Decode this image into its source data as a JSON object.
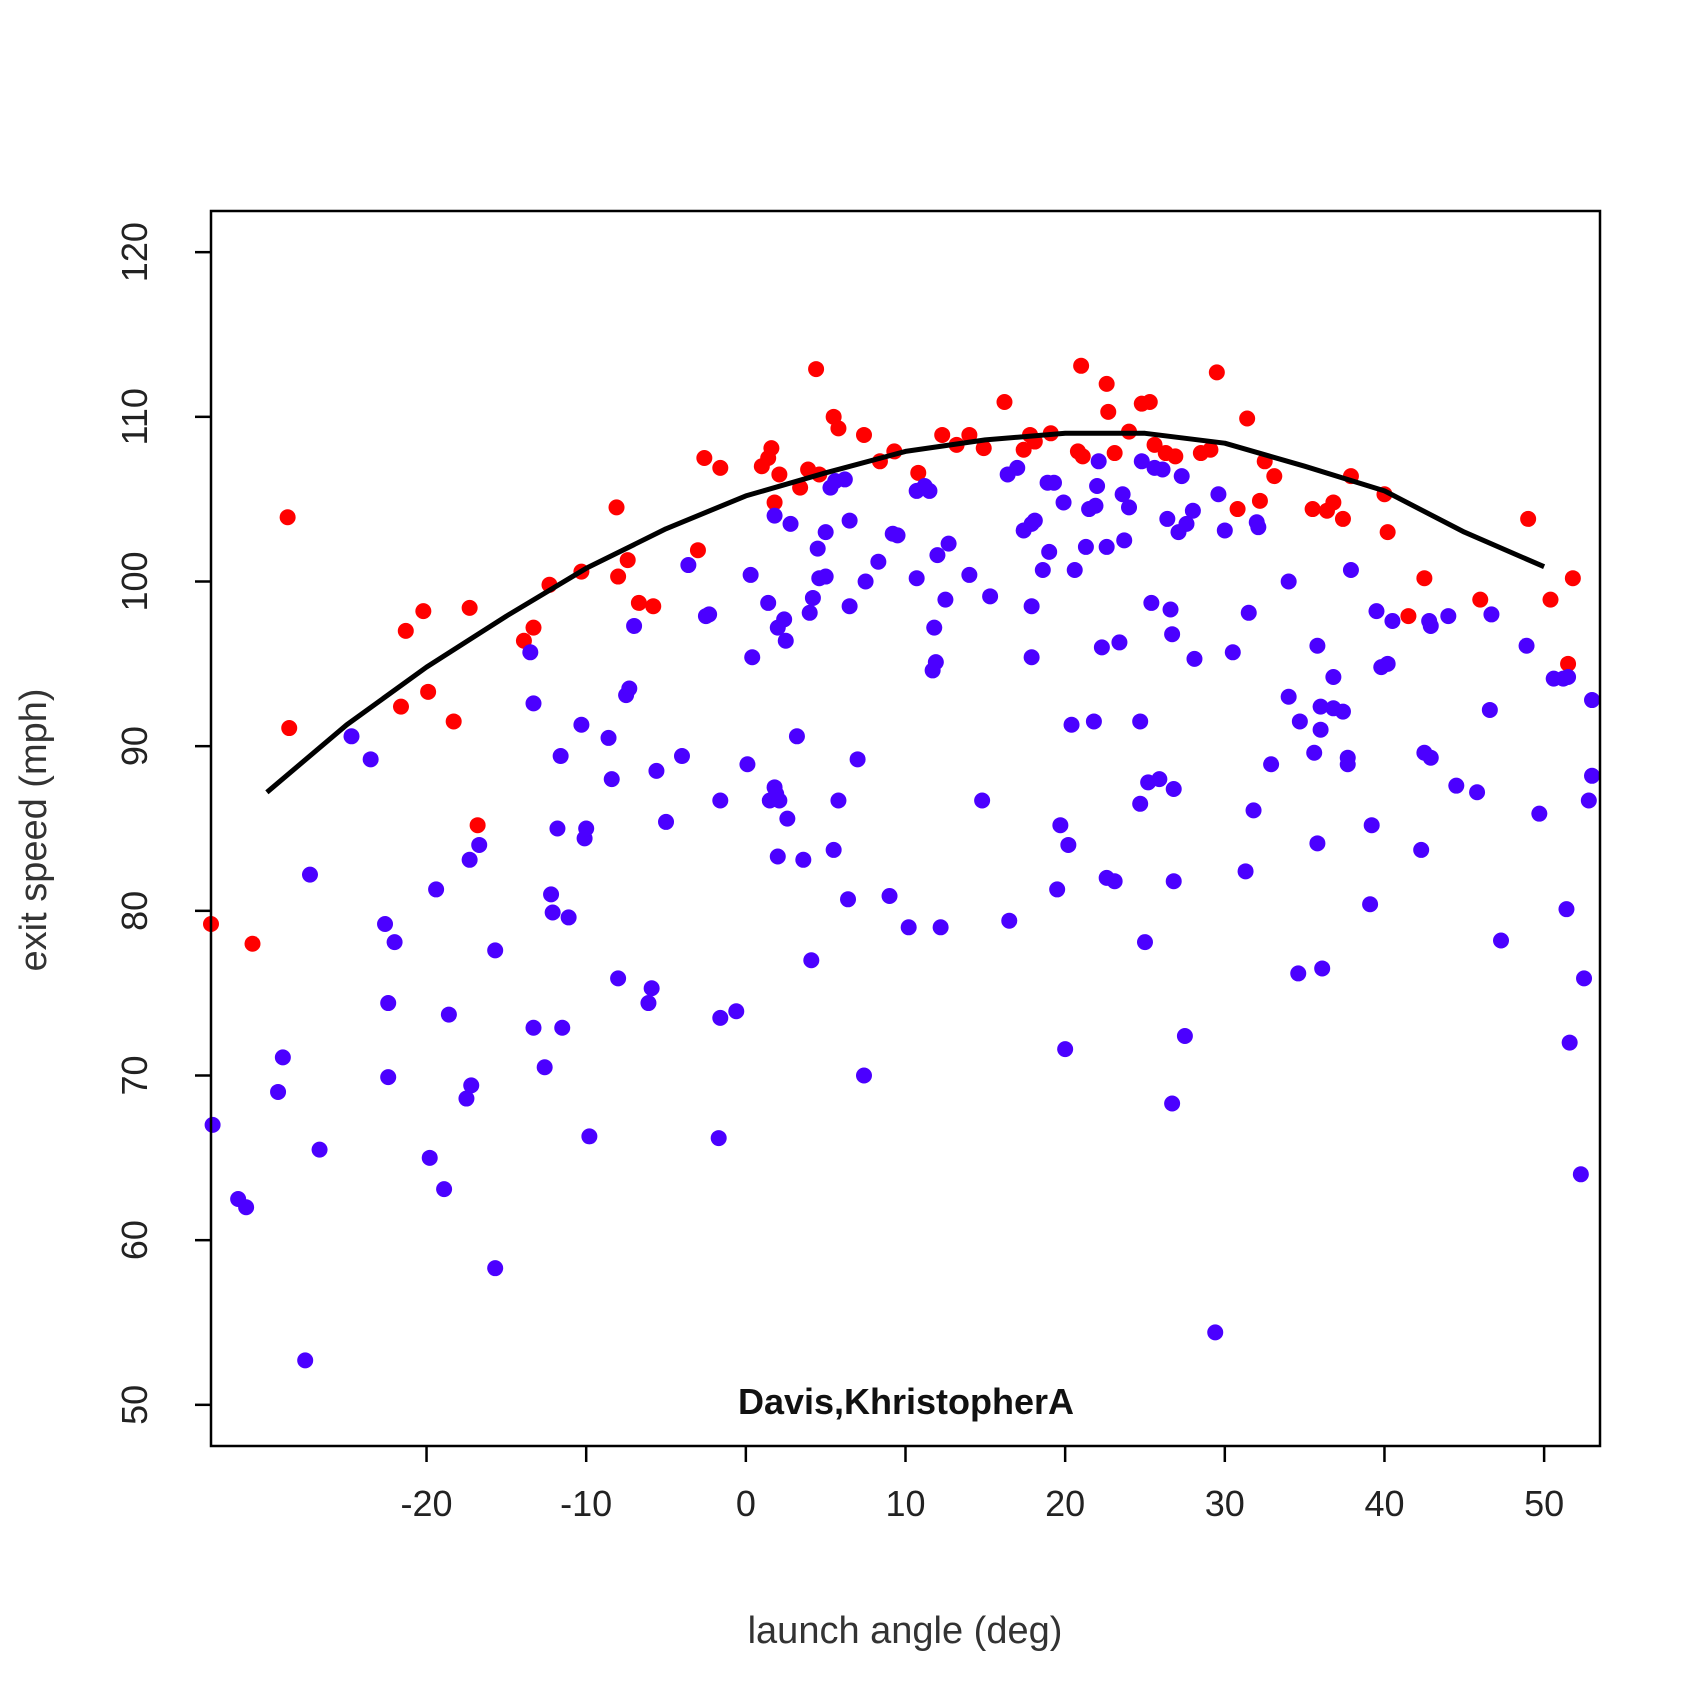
{
  "chart_data": {
    "type": "scatter",
    "title": "",
    "xlabel": "launch angle (deg)",
    "ylabel": "exit speed (mph)",
    "annotation": "Davis,KhristopherA",
    "xlim": [
      -33.5,
      53.5
    ],
    "ylim": [
      47.5,
      122.5
    ],
    "x_ticks": [
      -20,
      -10,
      0,
      10,
      20,
      30,
      40,
      50
    ],
    "y_ticks": [
      50,
      60,
      70,
      80,
      90,
      100,
      110,
      120
    ],
    "grid": false,
    "legend": "none",
    "colors": {
      "red_series": "#ff0000",
      "blue_series": "#4b00ff",
      "fit_line": "#000000"
    },
    "series": [
      {
        "color": "#ff0000",
        "points": [
          [
            -33.5,
            79.2
          ],
          [
            -30.9,
            78.0
          ],
          [
            -28.7,
            103.9
          ],
          [
            -28.6,
            91.1
          ],
          [
            -21.6,
            92.4
          ],
          [
            -21.3,
            97.0
          ],
          [
            -20.2,
            98.2
          ],
          [
            -19.9,
            93.3
          ],
          [
            -18.3,
            91.5
          ],
          [
            -17.3,
            98.4
          ],
          [
            -16.8,
            85.2
          ],
          [
            -13.9,
            96.4
          ],
          [
            -13.3,
            97.2
          ],
          [
            -12.3,
            99.8
          ],
          [
            -10.3,
            100.6
          ],
          [
            -8.1,
            104.5
          ],
          [
            -8.0,
            100.3
          ],
          [
            -7.4,
            101.3
          ],
          [
            -6.7,
            98.7
          ],
          [
            -5.8,
            98.5
          ],
          [
            -3.0,
            101.9
          ],
          [
            -2.6,
            107.5
          ],
          [
            -1.6,
            106.9
          ],
          [
            1.0,
            107.0
          ],
          [
            1.4,
            107.5
          ],
          [
            1.6,
            108.1
          ],
          [
            1.8,
            104.8
          ],
          [
            2.1,
            106.5
          ],
          [
            3.4,
            105.7
          ],
          [
            3.9,
            106.8
          ],
          [
            4.4,
            112.9
          ],
          [
            4.6,
            106.5
          ],
          [
            5.5,
            110.0
          ],
          [
            5.8,
            109.3
          ],
          [
            7.4,
            108.9
          ],
          [
            8.4,
            107.3
          ],
          [
            9.3,
            107.9
          ],
          [
            10.8,
            106.6
          ],
          [
            12.3,
            108.9
          ],
          [
            13.2,
            108.3
          ],
          [
            14.0,
            108.9
          ],
          [
            14.9,
            108.1
          ],
          [
            16.2,
            110.9
          ],
          [
            17.4,
            108.0
          ],
          [
            17.8,
            108.9
          ],
          [
            18.1,
            108.5
          ],
          [
            19.1,
            109.0
          ],
          [
            20.8,
            107.9
          ],
          [
            21.0,
            113.1
          ],
          [
            21.1,
            107.6
          ],
          [
            22.6,
            112.0
          ],
          [
            22.7,
            110.3
          ],
          [
            23.1,
            107.8
          ],
          [
            24.0,
            109.1
          ],
          [
            24.8,
            110.8
          ],
          [
            25.3,
            110.9
          ],
          [
            25.6,
            108.3
          ],
          [
            26.3,
            107.8
          ],
          [
            26.9,
            107.6
          ],
          [
            28.5,
            107.8
          ],
          [
            29.1,
            108.0
          ],
          [
            29.5,
            112.7
          ],
          [
            30.8,
            104.4
          ],
          [
            31.4,
            109.9
          ],
          [
            32.2,
            104.9
          ],
          [
            32.5,
            107.3
          ],
          [
            33.1,
            106.4
          ],
          [
            35.5,
            104.4
          ],
          [
            36.4,
            104.3
          ],
          [
            36.8,
            104.8
          ],
          [
            37.4,
            103.8
          ],
          [
            37.9,
            106.4
          ],
          [
            40.0,
            105.3
          ],
          [
            40.2,
            103.0
          ],
          [
            41.5,
            97.9
          ],
          [
            42.5,
            100.2
          ],
          [
            46.0,
            98.9
          ],
          [
            49.0,
            103.8
          ],
          [
            50.4,
            98.9
          ],
          [
            51.5,
            95.0
          ],
          [
            51.8,
            100.2
          ]
        ]
      },
      {
        "color": "#4b00ff",
        "points": [
          [
            -33.4,
            67.0
          ],
          [
            -31.8,
            62.5
          ],
          [
            -31.3,
            62.0
          ],
          [
            -29.3,
            69.0
          ],
          [
            -29.0,
            71.1
          ],
          [
            -27.6,
            52.7
          ],
          [
            -27.3,
            82.2
          ],
          [
            -26.7,
            65.5
          ],
          [
            -24.7,
            90.6
          ],
          [
            -23.5,
            89.2
          ],
          [
            -22.6,
            79.2
          ],
          [
            -22.4,
            69.9
          ],
          [
            -22.4,
            74.4
          ],
          [
            -22.0,
            78.1
          ],
          [
            -19.8,
            65.0
          ],
          [
            -19.4,
            81.3
          ],
          [
            -18.9,
            63.1
          ],
          [
            -18.6,
            73.7
          ],
          [
            -17.5,
            68.6
          ],
          [
            -17.2,
            69.4
          ],
          [
            -17.3,
            83.1
          ],
          [
            -16.7,
            84.0
          ],
          [
            -15.7,
            58.3
          ],
          [
            -15.7,
            77.6
          ],
          [
            -13.5,
            95.7
          ],
          [
            -13.3,
            92.6
          ],
          [
            -13.3,
            72.9
          ],
          [
            -12.6,
            70.5
          ],
          [
            -12.2,
            81.0
          ],
          [
            -12.1,
            79.9
          ],
          [
            -11.8,
            85.0
          ],
          [
            -11.6,
            89.4
          ],
          [
            -11.5,
            72.9
          ],
          [
            -11.1,
            79.6
          ],
          [
            -10.3,
            91.3
          ],
          [
            -10.1,
            84.4
          ],
          [
            -10.0,
            85.0
          ],
          [
            -9.8,
            66.3
          ],
          [
            -8.6,
            90.5
          ],
          [
            -8.4,
            88.0
          ],
          [
            -8.0,
            75.9
          ],
          [
            -7.5,
            93.1
          ],
          [
            -7.3,
            93.5
          ],
          [
            -7.0,
            97.3
          ],
          [
            -6.1,
            74.4
          ],
          [
            -5.9,
            75.3
          ],
          [
            -5.6,
            88.5
          ],
          [
            -5.0,
            85.4
          ],
          [
            -4.0,
            89.4
          ],
          [
            -3.6,
            101.0
          ],
          [
            -2.5,
            97.9
          ],
          [
            -2.3,
            98.0
          ],
          [
            -1.7,
            66.2
          ],
          [
            -1.6,
            86.7
          ],
          [
            -1.6,
            73.5
          ],
          [
            -0.6,
            73.9
          ],
          [
            0.1,
            88.9
          ],
          [
            0.3,
            100.4
          ],
          [
            0.4,
            95.4
          ],
          [
            1.4,
            98.7
          ],
          [
            1.5,
            86.7
          ],
          [
            1.8,
            87.5
          ],
          [
            1.8,
            104.0
          ],
          [
            1.9,
            87.1
          ],
          [
            2.1,
            86.7
          ],
          [
            2.0,
            97.2
          ],
          [
            2.0,
            83.3
          ],
          [
            2.4,
            97.7
          ],
          [
            2.5,
            96.4
          ],
          [
            2.6,
            85.6
          ],
          [
            2.8,
            103.5
          ],
          [
            3.2,
            90.6
          ],
          [
            3.6,
            83.1
          ],
          [
            4.1,
            77.0
          ],
          [
            4.0,
            98.1
          ],
          [
            4.2,
            99.0
          ],
          [
            4.5,
            102.0
          ],
          [
            4.6,
            100.2
          ],
          [
            5.0,
            103.0
          ],
          [
            5.0,
            100.3
          ],
          [
            5.3,
            105.7
          ],
          [
            5.5,
            83.7
          ],
          [
            5.6,
            106.1
          ],
          [
            5.8,
            86.7
          ],
          [
            6.2,
            106.2
          ],
          [
            6.4,
            80.7
          ],
          [
            6.5,
            98.5
          ],
          [
            6.5,
            103.7
          ],
          [
            7.0,
            89.2
          ],
          [
            7.4,
            70.0
          ],
          [
            7.5,
            100.0
          ],
          [
            8.3,
            101.2
          ],
          [
            9.0,
            80.9
          ],
          [
            9.2,
            102.9
          ],
          [
            9.5,
            102.8
          ],
          [
            10.2,
            79.0
          ],
          [
            10.7,
            100.2
          ],
          [
            10.7,
            105.5
          ],
          [
            11.2,
            105.8
          ],
          [
            11.5,
            105.5
          ],
          [
            11.7,
            94.6
          ],
          [
            11.8,
            97.2
          ],
          [
            11.9,
            95.1
          ],
          [
            12.0,
            101.6
          ],
          [
            12.2,
            79.0
          ],
          [
            12.5,
            98.9
          ],
          [
            12.7,
            102.3
          ],
          [
            14.0,
            100.4
          ],
          [
            14.8,
            86.7
          ],
          [
            15.3,
            99.1
          ],
          [
            16.4,
            106.5
          ],
          [
            16.5,
            79.4
          ],
          [
            17.0,
            106.9
          ],
          [
            17.4,
            103.1
          ],
          [
            17.9,
            103.5
          ],
          [
            17.9,
            98.5
          ],
          [
            17.9,
            95.4
          ],
          [
            18.1,
            103.7
          ],
          [
            18.6,
            100.7
          ],
          [
            18.9,
            106.0
          ],
          [
            19.0,
            101.8
          ],
          [
            19.3,
            106.0
          ],
          [
            19.5,
            81.3
          ],
          [
            19.7,
            85.2
          ],
          [
            19.9,
            104.8
          ],
          [
            20.0,
            71.6
          ],
          [
            20.2,
            84.0
          ],
          [
            20.4,
            91.3
          ],
          [
            20.6,
            100.7
          ],
          [
            21.3,
            102.1
          ],
          [
            21.5,
            104.4
          ],
          [
            21.8,
            91.5
          ],
          [
            21.9,
            104.6
          ],
          [
            22.0,
            105.8
          ],
          [
            22.1,
            107.3
          ],
          [
            22.3,
            96.0
          ],
          [
            22.6,
            82.0
          ],
          [
            22.6,
            102.1
          ],
          [
            23.1,
            81.8
          ],
          [
            23.4,
            96.3
          ],
          [
            23.6,
            105.3
          ],
          [
            23.7,
            102.5
          ],
          [
            24.0,
            104.5
          ],
          [
            24.7,
            91.5
          ],
          [
            24.7,
            86.5
          ],
          [
            24.8,
            107.3
          ],
          [
            25.0,
            78.1
          ],
          [
            25.2,
            87.8
          ],
          [
            25.4,
            98.7
          ],
          [
            25.6,
            106.9
          ],
          [
            25.9,
            88.0
          ],
          [
            26.1,
            106.8
          ],
          [
            26.4,
            103.8
          ],
          [
            26.6,
            98.3
          ],
          [
            26.7,
            68.3
          ],
          [
            26.7,
            96.8
          ],
          [
            26.8,
            81.8
          ],
          [
            26.8,
            87.4
          ],
          [
            27.1,
            103.0
          ],
          [
            27.3,
            106.4
          ],
          [
            27.5,
            72.4
          ],
          [
            27.6,
            103.5
          ],
          [
            28.0,
            104.3
          ],
          [
            28.1,
            95.3
          ],
          [
            29.4,
            54.4
          ],
          [
            29.6,
            105.3
          ],
          [
            30.0,
            103.1
          ],
          [
            30.5,
            95.7
          ],
          [
            31.3,
            82.4
          ],
          [
            31.5,
            98.1
          ],
          [
            31.8,
            86.1
          ],
          [
            32.0,
            103.6
          ],
          [
            32.1,
            103.3
          ],
          [
            32.9,
            88.9
          ],
          [
            34.0,
            100.0
          ],
          [
            34.0,
            93.0
          ],
          [
            34.6,
            76.2
          ],
          [
            34.7,
            91.5
          ],
          [
            35.6,
            89.6
          ],
          [
            35.8,
            84.1
          ],
          [
            35.8,
            96.1
          ],
          [
            36.0,
            92.4
          ],
          [
            36.1,
            76.5
          ],
          [
            36.0,
            91.0
          ],
          [
            36.8,
            92.3
          ],
          [
            36.8,
            94.2
          ],
          [
            37.4,
            92.1
          ],
          [
            37.7,
            89.3
          ],
          [
            37.7,
            88.9
          ],
          [
            37.9,
            100.7
          ],
          [
            39.1,
            80.4
          ],
          [
            39.2,
            85.2
          ],
          [
            39.5,
            98.2
          ],
          [
            39.8,
            94.8
          ],
          [
            40.2,
            95.0
          ],
          [
            40.5,
            97.6
          ],
          [
            42.3,
            83.7
          ],
          [
            42.5,
            89.6
          ],
          [
            42.8,
            97.6
          ],
          [
            42.9,
            89.3
          ],
          [
            42.9,
            97.3
          ],
          [
            44.0,
            97.9
          ],
          [
            44.5,
            87.6
          ],
          [
            45.8,
            87.2
          ],
          [
            46.6,
            92.2
          ],
          [
            46.7,
            98.0
          ],
          [
            47.3,
            78.2
          ],
          [
            48.9,
            96.1
          ],
          [
            49.7,
            85.9
          ],
          [
            50.6,
            94.1
          ],
          [
            51.2,
            94.1
          ],
          [
            51.5,
            94.2
          ],
          [
            51.4,
            80.1
          ],
          [
            51.6,
            72.0
          ],
          [
            52.3,
            64.0
          ],
          [
            52.5,
            75.9
          ],
          [
            52.8,
            86.7
          ],
          [
            53.0,
            88.2
          ],
          [
            53.0,
            92.8
          ]
        ]
      }
    ],
    "fit_line": [
      [
        -30.0,
        87.2
      ],
      [
        -25.0,
        91.3
      ],
      [
        -20.0,
        94.8
      ],
      [
        -15.0,
        97.9
      ],
      [
        -10.0,
        100.8
      ],
      [
        -5.0,
        103.2
      ],
      [
        0.0,
        105.2
      ],
      [
        5.0,
        106.6
      ],
      [
        10.0,
        107.9
      ],
      [
        15.0,
        108.6
      ],
      [
        20.0,
        109.0
      ],
      [
        25.0,
        109.0
      ],
      [
        30.0,
        108.4
      ],
      [
        35.0,
        107.0
      ],
      [
        40.0,
        105.5
      ],
      [
        45.0,
        103.0
      ],
      [
        50.0,
        100.9
      ]
    ]
  }
}
